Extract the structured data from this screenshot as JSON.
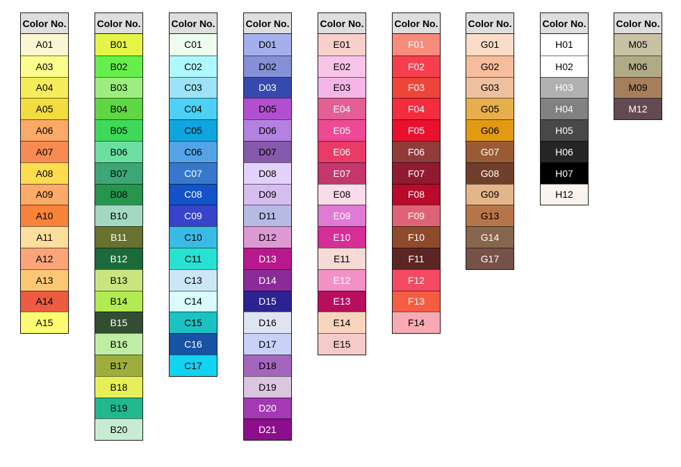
{
  "header_label": "Color No.",
  "columns": [
    {
      "group": "A",
      "swatches": [
        {
          "code": "A01",
          "color": "#fbf7d2",
          "text": "dark"
        },
        {
          "code": "A03",
          "color": "#fcfc8c",
          "text": "dark"
        },
        {
          "code": "A04",
          "color": "#f6ed5a",
          "text": "dark"
        },
        {
          "code": "A05",
          "color": "#f2dc3f",
          "text": "dark"
        },
        {
          "code": "A06",
          "color": "#fba966",
          "text": "dark"
        },
        {
          "code": "A07",
          "color": "#f98b52",
          "text": "dark"
        },
        {
          "code": "A08",
          "color": "#fddc50",
          "text": "dark"
        },
        {
          "code": "A09",
          "color": "#fbaa68",
          "text": "dark"
        },
        {
          "code": "A10",
          "color": "#f98338",
          "text": "dark"
        },
        {
          "code": "A11",
          "color": "#fdde9c",
          "text": "dark"
        },
        {
          "code": "A12",
          "color": "#fba47a",
          "text": "dark"
        },
        {
          "code": "A13",
          "color": "#fdc874",
          "text": "dark"
        },
        {
          "code": "A14",
          "color": "#ec5b42",
          "text": "dark"
        },
        {
          "code": "A15",
          "color": "#fcfb72",
          "text": "dark"
        }
      ]
    },
    {
      "group": "B",
      "swatches": [
        {
          "code": "B01",
          "color": "#e5f548",
          "text": "dark"
        },
        {
          "code": "B02",
          "color": "#66ef4a",
          "text": "dark"
        },
        {
          "code": "B03",
          "color": "#9cef7e",
          "text": "dark"
        },
        {
          "code": "B04",
          "color": "#5fd742",
          "text": "dark"
        },
        {
          "code": "B05",
          "color": "#3ed958",
          "text": "dark"
        },
        {
          "code": "B06",
          "color": "#6adfa0",
          "text": "dark"
        },
        {
          "code": "B07",
          "color": "#3ca676",
          "text": "dark"
        },
        {
          "code": "B08",
          "color": "#26954e",
          "text": "dark"
        },
        {
          "code": "B10",
          "color": "#a3d8c3",
          "text": "dark"
        },
        {
          "code": "B11",
          "color": "#69712e",
          "text": "light"
        },
        {
          "code": "B12",
          "color": "#1c6a3b",
          "text": "light"
        },
        {
          "code": "B13",
          "color": "#c9e67e",
          "text": "dark"
        },
        {
          "code": "B14",
          "color": "#b1ea51",
          "text": "dark"
        },
        {
          "code": "B15",
          "color": "#324d32",
          "text": "light"
        },
        {
          "code": "B16",
          "color": "#c0eda4",
          "text": "dark"
        },
        {
          "code": "B17",
          "color": "#9eae3c",
          "text": "dark"
        },
        {
          "code": "B18",
          "color": "#e7ef58",
          "text": "dark"
        },
        {
          "code": "B19",
          "color": "#22b88e",
          "text": "dark"
        },
        {
          "code": "B20",
          "color": "#c7ecd3",
          "text": "dark"
        }
      ]
    },
    {
      "group": "C",
      "swatches": [
        {
          "code": "C01",
          "color": "#ecfdee",
          "text": "dark"
        },
        {
          "code": "C02",
          "color": "#aef8fb",
          "text": "dark"
        },
        {
          "code": "C03",
          "color": "#9ee2f7",
          "text": "dark"
        },
        {
          "code": "C04",
          "color": "#4cd0f4",
          "text": "dark"
        },
        {
          "code": "C05",
          "color": "#0fa5e1",
          "text": "dark"
        },
        {
          "code": "C06",
          "color": "#53a3e6",
          "text": "dark"
        },
        {
          "code": "C07",
          "color": "#3778cc",
          "text": "light"
        },
        {
          "code": "C08",
          "color": "#1352c8",
          "text": "light"
        },
        {
          "code": "C09",
          "color": "#3743c9",
          "text": "light"
        },
        {
          "code": "C10",
          "color": "#3abbe5",
          "text": "dark"
        },
        {
          "code": "C11",
          "color": "#28e1d1",
          "text": "dark"
        },
        {
          "code": "C13",
          "color": "#cbe6f7",
          "text": "dark"
        },
        {
          "code": "C14",
          "color": "#d8fbfb",
          "text": "dark"
        },
        {
          "code": "C15",
          "color": "#1cc2c2",
          "text": "dark"
        },
        {
          "code": "C16",
          "color": "#1752a4",
          "text": "light"
        },
        {
          "code": "C17",
          "color": "#13d3f3",
          "text": "dark"
        }
      ]
    },
    {
      "group": "D",
      "swatches": [
        {
          "code": "D01",
          "color": "#a4b0ec",
          "text": "dark"
        },
        {
          "code": "D02",
          "color": "#8590d6",
          "text": "dark"
        },
        {
          "code": "D03",
          "color": "#3649ae",
          "text": "light"
        },
        {
          "code": "D05",
          "color": "#b14fd1",
          "text": "dark"
        },
        {
          "code": "D06",
          "color": "#b382e0",
          "text": "dark"
        },
        {
          "code": "D07",
          "color": "#8559ab",
          "text": "dark"
        },
        {
          "code": "D08",
          "color": "#e2d2fb",
          "text": "dark"
        },
        {
          "code": "D09",
          "color": "#d6bdf0",
          "text": "dark"
        },
        {
          "code": "D11",
          "color": "#b6bbe6",
          "text": "dark"
        },
        {
          "code": "D12",
          "color": "#dc99d3",
          "text": "dark"
        },
        {
          "code": "D13",
          "color": "#b7188c",
          "text": "light"
        },
        {
          "code": "D14",
          "color": "#8a2c98",
          "text": "light"
        },
        {
          "code": "D15",
          "color": "#2a2390",
          "text": "light"
        },
        {
          "code": "D16",
          "color": "#e0e4f2",
          "text": "dark"
        },
        {
          "code": "D17",
          "color": "#c8d1f8",
          "text": "dark"
        },
        {
          "code": "D18",
          "color": "#a466bd",
          "text": "dark"
        },
        {
          "code": "D19",
          "color": "#dbc5e0",
          "text": "dark"
        },
        {
          "code": "D20",
          "color": "#a33ab3",
          "text": "light"
        },
        {
          "code": "D21",
          "color": "#8c0e8c",
          "text": "light"
        }
      ]
    },
    {
      "group": "E",
      "swatches": [
        {
          "code": "E01",
          "color": "#f7cfcb",
          "text": "dark"
        },
        {
          "code": "E02",
          "color": "#f8c5e8",
          "text": "dark"
        },
        {
          "code": "E03",
          "color": "#f4b6e6",
          "text": "dark"
        },
        {
          "code": "E04",
          "color": "#e35f95",
          "text": "light"
        },
        {
          "code": "E05",
          "color": "#ee4995",
          "text": "light"
        },
        {
          "code": "E06",
          "color": "#ea3a66",
          "text": "light"
        },
        {
          "code": "E07",
          "color": "#c4376c",
          "text": "light"
        },
        {
          "code": "E08",
          "color": "#fbdcea",
          "text": "dark"
        },
        {
          "code": "E09",
          "color": "#e17ad4",
          "text": "light"
        },
        {
          "code": "E10",
          "color": "#d62d98",
          "text": "light"
        },
        {
          "code": "E11",
          "color": "#f7dad4",
          "text": "dark"
        },
        {
          "code": "E12",
          "color": "#f391c4",
          "text": "light"
        },
        {
          "code": "E13",
          "color": "#b80e5e",
          "text": "light"
        },
        {
          "code": "E14",
          "color": "#fad5bd",
          "text": "dark"
        },
        {
          "code": "E15",
          "color": "#f5caca",
          "text": "dark"
        }
      ]
    },
    {
      "group": "F",
      "swatches": [
        {
          "code": "F01",
          "color": "#f88c7c",
          "text": "light"
        },
        {
          "code": "F02",
          "color": "#f53f4f",
          "text": "light"
        },
        {
          "code": "F03",
          "color": "#ee4538",
          "text": "light"
        },
        {
          "code": "F04",
          "color": "#f52b3e",
          "text": "light"
        },
        {
          "code": "F05",
          "color": "#e8112d",
          "text": "light"
        },
        {
          "code": "F06",
          "color": "#913b3a",
          "text": "light"
        },
        {
          "code": "F07",
          "color": "#901b30",
          "text": "light"
        },
        {
          "code": "F08",
          "color": "#b90a2a",
          "text": "light"
        },
        {
          "code": "F09",
          "color": "#de6475",
          "text": "light"
        },
        {
          "code": "F10",
          "color": "#8e4a2b",
          "text": "light"
        },
        {
          "code": "F11",
          "color": "#5a2523",
          "text": "light"
        },
        {
          "code": "F12",
          "color": "#f54a63",
          "text": "light"
        },
        {
          "code": "F13",
          "color": "#f55c41",
          "text": "light"
        },
        {
          "code": "F14",
          "color": "#f8aab4",
          "text": "dark"
        }
      ]
    },
    {
      "group": "G",
      "swatches": [
        {
          "code": "G01",
          "color": "#fbdcc8",
          "text": "dark"
        },
        {
          "code": "G02",
          "color": "#f6bc9b",
          "text": "dark"
        },
        {
          "code": "G03",
          "color": "#edc1a0",
          "text": "dark"
        },
        {
          "code": "G05",
          "color": "#e7af4c",
          "text": "dark"
        },
        {
          "code": "G06",
          "color": "#e39a13",
          "text": "dark"
        },
        {
          "code": "G07",
          "color": "#9b5c35",
          "text": "light"
        },
        {
          "code": "G08",
          "color": "#6f3f2b",
          "text": "light"
        },
        {
          "code": "G09",
          "color": "#e4b48a",
          "text": "dark"
        },
        {
          "code": "G13",
          "color": "#b7764a",
          "text": "dark"
        },
        {
          "code": "G14",
          "color": "#86664c",
          "text": "light"
        },
        {
          "code": "G17",
          "color": "#765148",
          "text": "light"
        }
      ]
    },
    {
      "group": "H",
      "swatches": [
        {
          "code": "H01",
          "color": "#ffffff",
          "text": "dark"
        },
        {
          "code": "H02",
          "color": "#ffffff",
          "text": "dark"
        },
        {
          "code": "H03",
          "color": "#b0b0b0",
          "text": "light"
        },
        {
          "code": "H04",
          "color": "#818181",
          "text": "light"
        },
        {
          "code": "H05",
          "color": "#484848",
          "text": "light"
        },
        {
          "code": "H06",
          "color": "#252525",
          "text": "light"
        },
        {
          "code": "H07",
          "color": "#000000",
          "text": "light"
        },
        {
          "code": "H12",
          "color": "#fbf4ec",
          "text": "dark"
        }
      ]
    },
    {
      "group": "M",
      "swatches": [
        {
          "code": "M05",
          "color": "#c9c1a4",
          "text": "dark"
        },
        {
          "code": "M06",
          "color": "#b0aa87",
          "text": "dark"
        },
        {
          "code": "M09",
          "color": "#a57e5c",
          "text": "dark"
        },
        {
          "code": "M12",
          "color": "#634a50",
          "text": "light"
        }
      ]
    }
  ]
}
